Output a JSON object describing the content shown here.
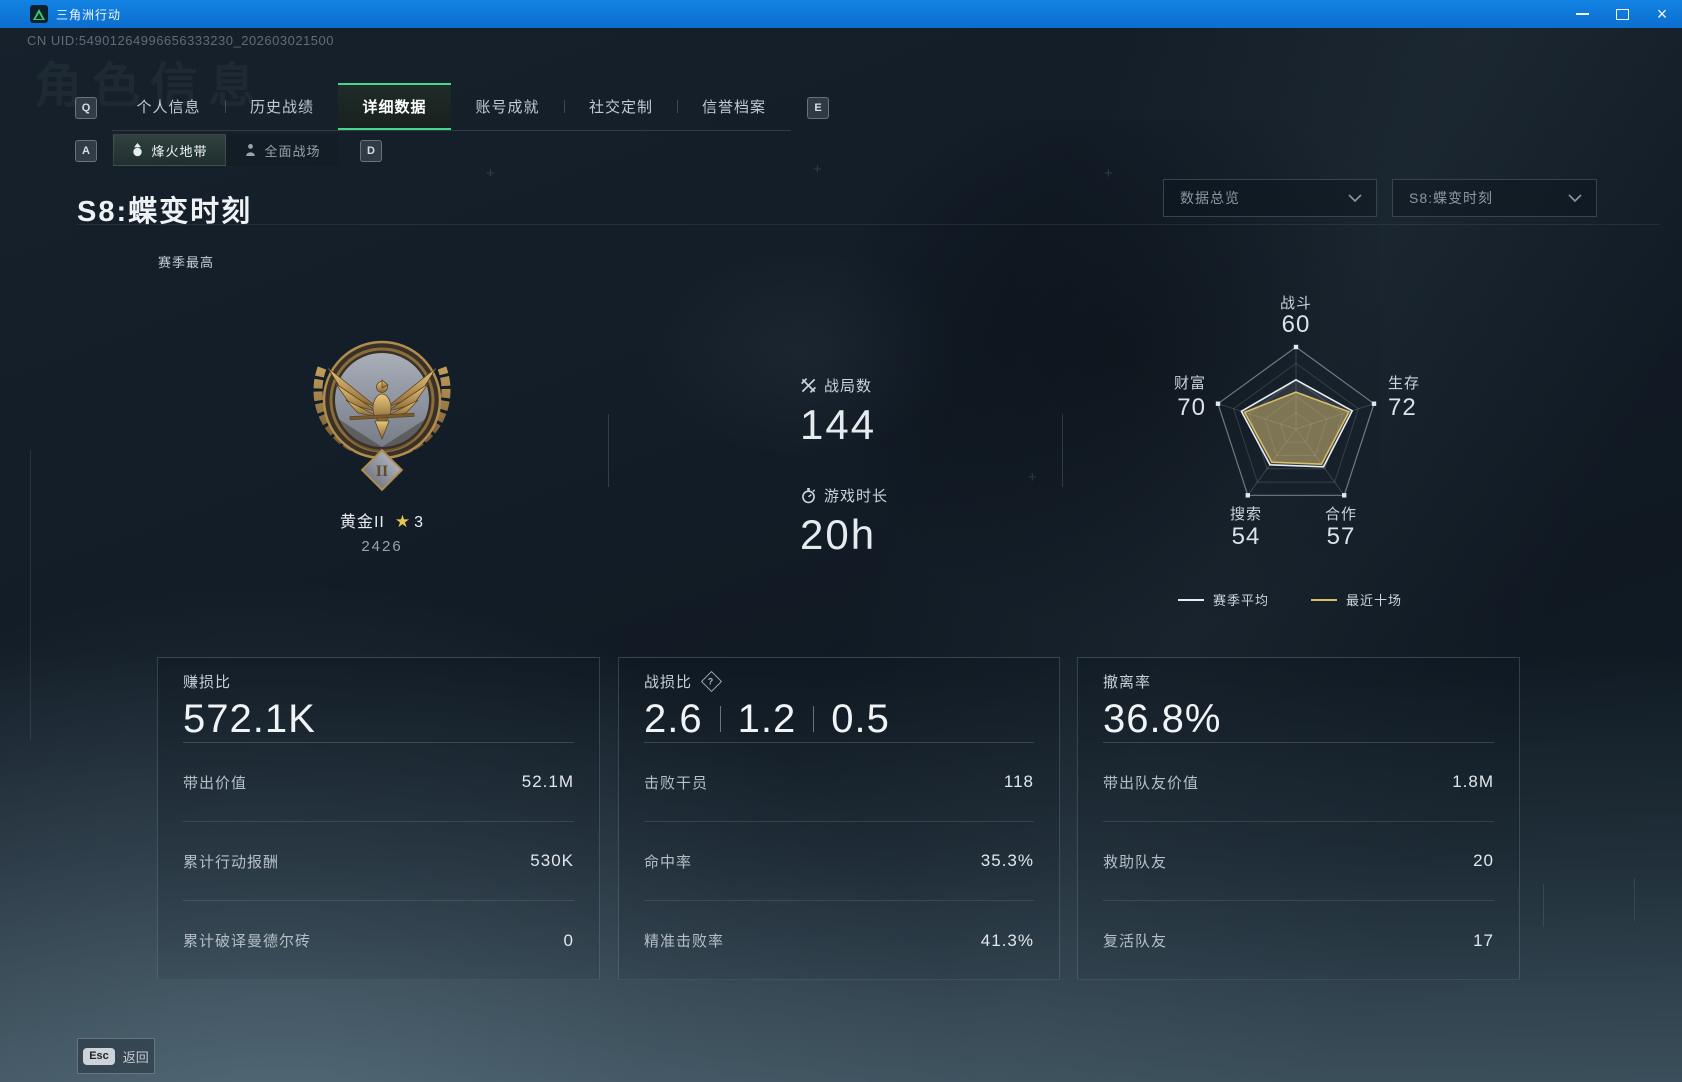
{
  "window": {
    "title": "三角洲行动"
  },
  "icons": {
    "close_glyph": "×",
    "star_glyph": "★",
    "cross_glyph": "+"
  },
  "page": {
    "uid": "CN UID:54901264996656333230_202603021500",
    "ghost_title": "角色信息",
    "season_title": "S8:蝶变时刻",
    "season_best_label": "赛季最高"
  },
  "hotkeys": {
    "tabs_prev": "Q",
    "tabs_next": "E",
    "subtabs_prev": "A",
    "subtabs_next": "D"
  },
  "tabs": [
    {
      "label": "个人信息"
    },
    {
      "label": "历史战绩"
    },
    {
      "label": "详细数据",
      "active": true
    },
    {
      "label": "账号成就"
    },
    {
      "label": "社交定制"
    },
    {
      "label": "信誉档案"
    }
  ],
  "subtabs": [
    {
      "label": "烽火地带",
      "active": true
    },
    {
      "label": "全面战场"
    }
  ],
  "filters": {
    "overview": "数据总览",
    "season": "S8:蝶变时刻"
  },
  "rank": {
    "name": "黄金II",
    "numeral": "II",
    "star_count": "3",
    "score": "2426"
  },
  "stats": [
    {
      "label": "战局数",
      "value": "144",
      "icon": "crossed-swords"
    },
    {
      "label": "游戏时长",
      "value": "20h",
      "icon": "stopwatch"
    }
  ],
  "chart_data": {
    "type": "radar",
    "axes": [
      "战斗",
      "生存",
      "合作",
      "搜索",
      "财富"
    ],
    "max": 100,
    "shown_values": [
      60,
      72,
      57,
      54,
      70
    ],
    "series": [
      {
        "name": "赛季平均",
        "values": [
          60,
          72,
          57,
          54,
          70
        ],
        "color": "#e9edf2"
      },
      {
        "name": "最近十场",
        "values": [
          45,
          68,
          53,
          50,
          66
        ],
        "color": "#d9bd67",
        "note": "values estimated from plot, not labeled"
      }
    ],
    "legend_position": "bottom"
  },
  "cards": [
    {
      "title": "赚损比",
      "hero": [
        "572.1K"
      ],
      "rows": [
        {
          "label": "带出价值",
          "value": "52.1M"
        },
        {
          "label": "累计行动报酬",
          "value": "530K"
        },
        {
          "label": "累计破译曼德尔砖",
          "value": "0"
        }
      ]
    },
    {
      "title": "战损比",
      "has_help": true,
      "hero": [
        "2.6",
        "1.2",
        "0.5"
      ],
      "rows": [
        {
          "label": "击败干员",
          "value": "118"
        },
        {
          "label": "命中率",
          "value": "35.3%"
        },
        {
          "label": "精准击败率",
          "value": "41.3%"
        }
      ]
    },
    {
      "title": "撤离率",
      "hero": [
        "36.8%"
      ],
      "rows": [
        {
          "label": "带出队友价值",
          "value": "1.8M"
        },
        {
          "label": "救助队友",
          "value": "20"
        },
        {
          "label": "复活队友",
          "value": "17"
        }
      ]
    }
  ],
  "footer": {
    "key": "Esc",
    "label": "返回"
  },
  "colors": {
    "accent_green": "#43d98c",
    "titlebar_blue": "#0d76d8",
    "gold": "#d9bd67",
    "radar_white": "#e9edf2"
  }
}
